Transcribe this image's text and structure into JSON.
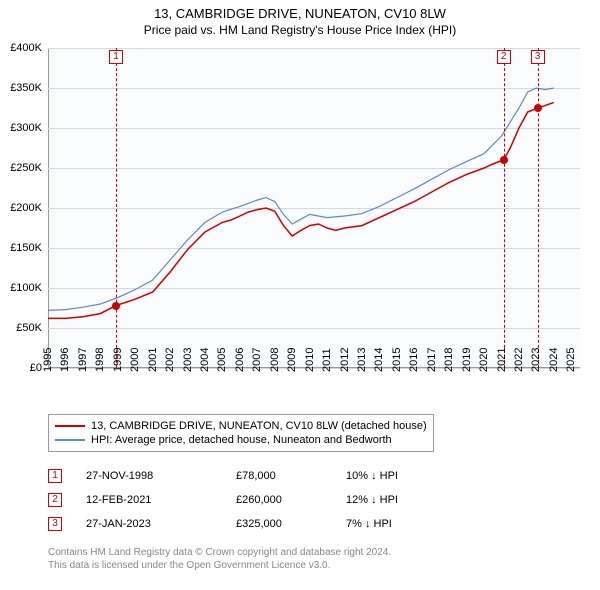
{
  "title": "13, CAMBRIDGE DRIVE, NUNEATON, CV10 8LW",
  "subtitle": "Price paid vs. HM Land Registry's House Price Index (HPI)",
  "chart": {
    "type": "line",
    "background_color": "#f9fbfd",
    "grid_color": "#d4d9dd",
    "axis_color": "#999999",
    "x_min": 1995,
    "x_max": 2025.5,
    "x_ticks": [
      1995,
      1996,
      1997,
      1998,
      1999,
      2000,
      2001,
      2002,
      2003,
      2004,
      2005,
      2006,
      2007,
      2008,
      2009,
      2010,
      2011,
      2012,
      2013,
      2014,
      2015,
      2016,
      2017,
      2018,
      2019,
      2020,
      2021,
      2022,
      2023,
      2024,
      2025
    ],
    "y_min": 0,
    "y_max": 400000,
    "y_ticks": [
      0,
      50000,
      100000,
      150000,
      200000,
      250000,
      300000,
      350000,
      400000
    ],
    "y_tick_labels": [
      "£0",
      "£50K",
      "£100K",
      "£150K",
      "£200K",
      "£250K",
      "£300K",
      "£350K",
      "£400K"
    ],
    "series": [
      {
        "name": "13, CAMBRIDGE DRIVE, NUNEATON, CV10 8LW (detached house)",
        "color": "#cc0000",
        "width": 1.5,
        "points": [
          [
            1995.0,
            62000
          ],
          [
            1996.0,
            62000
          ],
          [
            1997.0,
            64000
          ],
          [
            1998.0,
            68000
          ],
          [
            1998.9,
            78000
          ],
          [
            2000.0,
            86000
          ],
          [
            2001.0,
            95000
          ],
          [
            2002.0,
            120000
          ],
          [
            2003.0,
            148000
          ],
          [
            2004.0,
            170000
          ],
          [
            2005.0,
            182000
          ],
          [
            2005.5,
            185000
          ],
          [
            2006.0,
            190000
          ],
          [
            2006.5,
            195000
          ],
          [
            2007.0,
            198000
          ],
          [
            2007.5,
            200000
          ],
          [
            2008.0,
            196000
          ],
          [
            2008.5,
            178000
          ],
          [
            2009.0,
            165000
          ],
          [
            2009.5,
            172000
          ],
          [
            2010.0,
            178000
          ],
          [
            2010.5,
            180000
          ],
          [
            2011.0,
            175000
          ],
          [
            2011.5,
            172000
          ],
          [
            2012.0,
            175000
          ],
          [
            2013.0,
            178000
          ],
          [
            2014.0,
            188000
          ],
          [
            2015.0,
            198000
          ],
          [
            2016.0,
            208000
          ],
          [
            2017.0,
            220000
          ],
          [
            2018.0,
            232000
          ],
          [
            2019.0,
            242000
          ],
          [
            2020.0,
            250000
          ],
          [
            2020.5,
            255000
          ],
          [
            2021.12,
            260000
          ],
          [
            2021.5,
            275000
          ],
          [
            2022.0,
            300000
          ],
          [
            2022.5,
            320000
          ],
          [
            2023.07,
            325000
          ],
          [
            2023.5,
            328000
          ],
          [
            2024.0,
            332000
          ]
        ]
      },
      {
        "name": "HPI: Average price, detached house, Nuneaton and Bedworth",
        "color": "#5d8bc3",
        "width": 1.2,
        "points": [
          [
            1995.0,
            72000
          ],
          [
            1996.0,
            73000
          ],
          [
            1997.0,
            76000
          ],
          [
            1998.0,
            80000
          ],
          [
            1999.0,
            88000
          ],
          [
            2000.0,
            98000
          ],
          [
            2001.0,
            110000
          ],
          [
            2002.0,
            135000
          ],
          [
            2003.0,
            160000
          ],
          [
            2004.0,
            182000
          ],
          [
            2005.0,
            195000
          ],
          [
            2006.0,
            202000
          ],
          [
            2007.0,
            210000
          ],
          [
            2007.5,
            213000
          ],
          [
            2008.0,
            208000
          ],
          [
            2008.5,
            192000
          ],
          [
            2009.0,
            180000
          ],
          [
            2009.5,
            186000
          ],
          [
            2010.0,
            192000
          ],
          [
            2011.0,
            188000
          ],
          [
            2012.0,
            190000
          ],
          [
            2013.0,
            193000
          ],
          [
            2014.0,
            202000
          ],
          [
            2015.0,
            213000
          ],
          [
            2016.0,
            224000
          ],
          [
            2017.0,
            236000
          ],
          [
            2018.0,
            248000
          ],
          [
            2019.0,
            258000
          ],
          [
            2020.0,
            268000
          ],
          [
            2021.0,
            290000
          ],
          [
            2022.0,
            325000
          ],
          [
            2022.5,
            345000
          ],
          [
            2023.0,
            350000
          ],
          [
            2023.5,
            348000
          ],
          [
            2024.0,
            350000
          ]
        ]
      }
    ],
    "markers": [
      {
        "num": "1",
        "x": 1998.9,
        "y": 78000,
        "label_top": 2
      },
      {
        "num": "2",
        "x": 2021.12,
        "y": 260000,
        "label_top": 2
      },
      {
        "num": "3",
        "x": 2023.07,
        "y": 325000,
        "label_top": 2
      }
    ]
  },
  "legend": {
    "items": [
      {
        "label": "13, CAMBRIDGE DRIVE, NUNEATON, CV10 8LW (detached house)",
        "color": "#cc0000"
      },
      {
        "label": "HPI: Average price, detached house, Nuneaton and Bedworth",
        "color": "#5d8bc3"
      }
    ]
  },
  "events": [
    {
      "num": "1",
      "date": "27-NOV-1998",
      "price": "£78,000",
      "diff": "10% ↓ HPI"
    },
    {
      "num": "2",
      "date": "12-FEB-2021",
      "price": "£260,000",
      "diff": "12% ↓ HPI"
    },
    {
      "num": "3",
      "date": "27-JAN-2023",
      "price": "£325,000",
      "diff": "7% ↓ HPI"
    }
  ],
  "footer": {
    "line1": "Contains HM Land Registry data © Crown copyright and database right 2024.",
    "line2": "This data is licensed under the Open Government Licence v3.0."
  }
}
